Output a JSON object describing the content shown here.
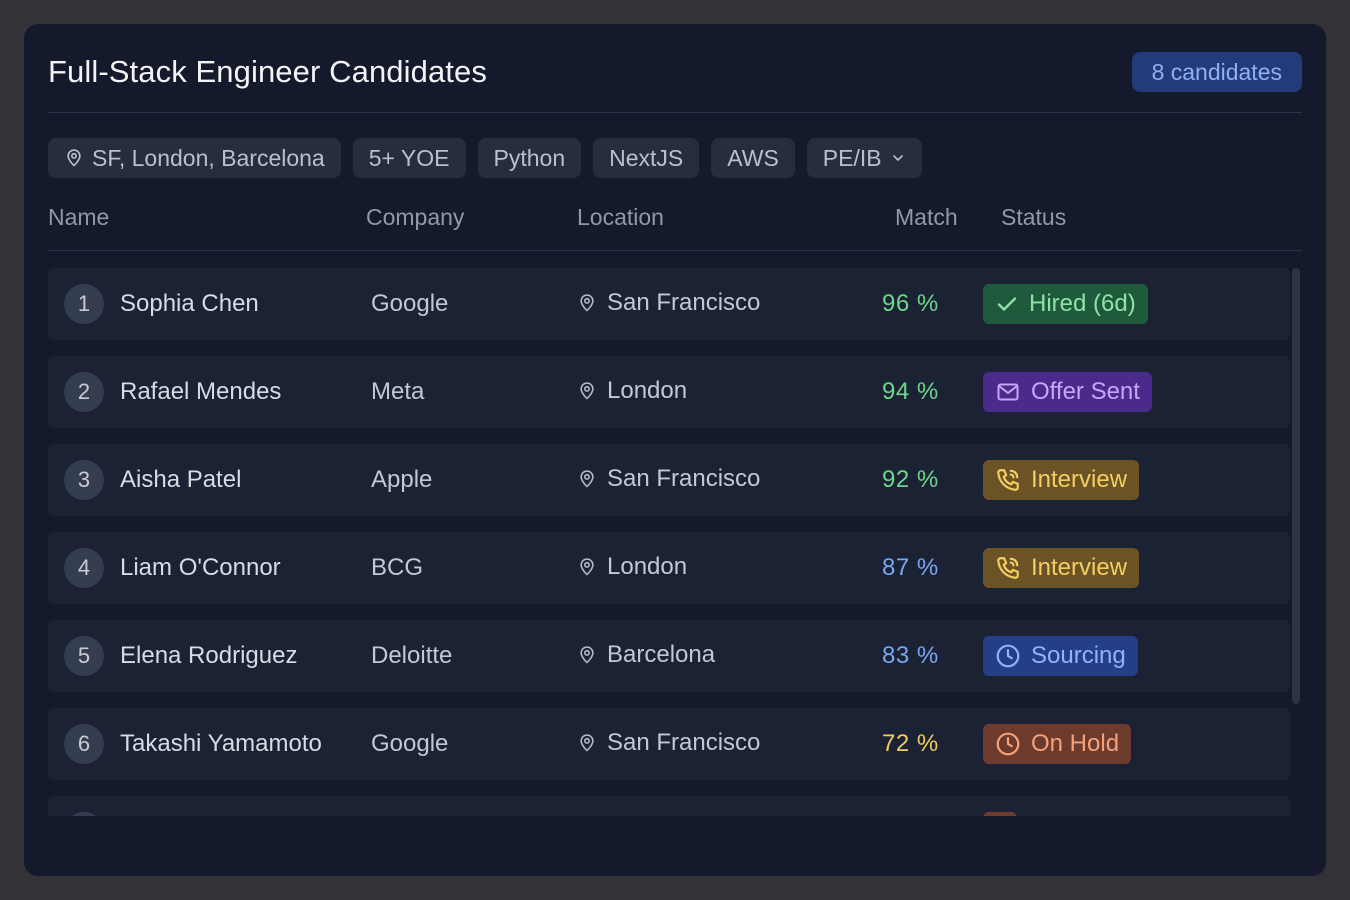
{
  "header": {
    "title": "Full-Stack Engineer Candidates",
    "count_badge": "8 candidates"
  },
  "filters": [
    {
      "label": "SF, London, Barcelona",
      "icon": "location-pin-icon"
    },
    {
      "label": "5+ YOE"
    },
    {
      "label": "Python"
    },
    {
      "label": "NextJS"
    },
    {
      "label": "AWS"
    },
    {
      "label": "PE/IB",
      "icon": "chevron-down-icon"
    }
  ],
  "columns": {
    "name": "Name",
    "company": "Company",
    "location": "Location",
    "match": "Match",
    "status": "Status"
  },
  "candidates": [
    {
      "num": "1",
      "name": "Sophia Chen",
      "company": "Google",
      "location": "San Francisco",
      "match": "96 %",
      "match_color": "#6fd58a",
      "status": "Hired (6d)",
      "status_icon": "check-icon",
      "status_bg": "#1f5a3c",
      "status_fg": "#8ee2a6"
    },
    {
      "num": "2",
      "name": "Rafael Mendes",
      "company": "Meta",
      "location": "London",
      "match": "94 %",
      "match_color": "#6fd58a",
      "status": "Offer Sent",
      "status_icon": "mail-icon",
      "status_bg": "#4a2a8a",
      "status_fg": "#c6a6f7"
    },
    {
      "num": "3",
      "name": "Aisha Patel",
      "company": "Apple",
      "location": "San Francisco",
      "match": "92 %",
      "match_color": "#6fd58a",
      "status": "Interview",
      "status_icon": "phone-icon",
      "status_bg": "#6b5326",
      "status_fg": "#f3cf62"
    },
    {
      "num": "4",
      "name": "Liam O'Connor",
      "company": "BCG",
      "location": "London",
      "match": "87 %",
      "match_color": "#79a6f2",
      "status": "Interview",
      "status_icon": "phone-icon",
      "status_bg": "#6b5326",
      "status_fg": "#f3cf62"
    },
    {
      "num": "5",
      "name": "Elena Rodriguez",
      "company": "Deloitte",
      "location": "Barcelona",
      "match": "83 %",
      "match_color": "#79a6f2",
      "status": "Sourcing",
      "status_icon": "clock-icon",
      "status_bg": "#243f86",
      "status_fg": "#8fb4f7"
    },
    {
      "num": "6",
      "name": "Takashi Yamamoto",
      "company": "Google",
      "location": "San Francisco",
      "match": "72 %",
      "match_color": "#f0cd5a",
      "status": "On Hold",
      "status_icon": "clock-icon",
      "status_bg": "#6e3a2c",
      "status_fg": "#f3a27c"
    },
    {
      "num": "",
      "name": "",
      "company": "",
      "location": "",
      "match": "",
      "match_color": "#f0cd5a",
      "status": "",
      "status_icon": "",
      "status_bg": "#6e3a2c",
      "status_fg": "#f3a27c"
    }
  ]
}
